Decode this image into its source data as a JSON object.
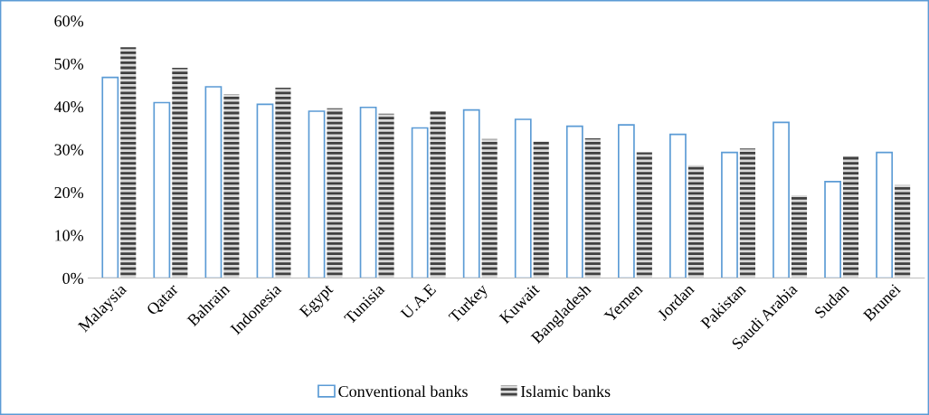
{
  "chart_data": {
    "type": "bar",
    "categories": [
      "Malaysia",
      "Qatar",
      "Bahrain",
      "Indonesia",
      "Egypt",
      "Tunisia",
      "U.A.E",
      "Turkey",
      "Kuwait",
      "Bangladesh",
      "Yemen",
      "Jordan",
      "Pakistan",
      "Saudi Arabia",
      "Sudan",
      "Brunei"
    ],
    "series": [
      {
        "name": "Conventional banks",
        "color": "#5b9bd5",
        "values": [
          0.468,
          0.409,
          0.446,
          0.405,
          0.389,
          0.398,
          0.35,
          0.392,
          0.37,
          0.354,
          0.357,
          0.335,
          0.293,
          0.363,
          0.225,
          0.293
        ]
      },
      {
        "name": "Islamic banks",
        "color": "#404040",
        "values": [
          0.538,
          0.49,
          0.429,
          0.444,
          0.396,
          0.383,
          0.389,
          0.324,
          0.319,
          0.326,
          0.293,
          0.263,
          0.302,
          0.193,
          0.284,
          0.217
        ]
      }
    ],
    "ylim": [
      0,
      0.6
    ],
    "yticks": [
      {
        "value": 0,
        "label": "0%"
      },
      {
        "value": 0.1,
        "label": "10%"
      },
      {
        "value": 0.2,
        "label": "20%"
      },
      {
        "value": 0.3,
        "label": "30%"
      },
      {
        "value": 0.4,
        "label": "40%"
      },
      {
        "value": 0.5,
        "label": "50%"
      },
      {
        "value": 0.6,
        "label": "60%"
      }
    ],
    "grid": false,
    "legend": "bottom"
  }
}
